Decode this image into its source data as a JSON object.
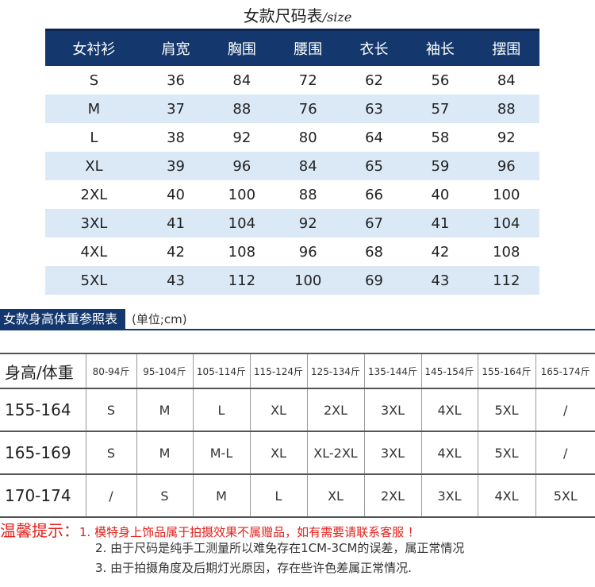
{
  "size_chart": {
    "title": "女款尺码表",
    "title_suffix": "/size",
    "headers": [
      "女衬衫",
      "肩宽",
      "胸围",
      "腰围",
      "衣长",
      "袖长",
      "摆围"
    ],
    "rows": [
      [
        "S",
        "36",
        "84",
        "72",
        "62",
        "56",
        "84"
      ],
      [
        "M",
        "37",
        "88",
        "76",
        "63",
        "57",
        "88"
      ],
      [
        "L",
        "38",
        "92",
        "80",
        "64",
        "58",
        "92"
      ],
      [
        "XL",
        "39",
        "96",
        "84",
        "65",
        "59",
        "96"
      ],
      [
        "2XL",
        "40",
        "100",
        "88",
        "66",
        "40",
        "100"
      ],
      [
        "3XL",
        "41",
        "104",
        "92",
        "67",
        "41",
        "104"
      ],
      [
        "4XL",
        "42",
        "108",
        "96",
        "68",
        "42",
        "108"
      ],
      [
        "5XL",
        "43",
        "112",
        "100",
        "69",
        "43",
        "112"
      ]
    ]
  },
  "height_weight_chart": {
    "title": "女款身高体重参照表",
    "unit": "(单位;cm)",
    "headers": [
      "身高/体重",
      "80-94斤",
      "95-104斤",
      "105-114斤",
      "115-124斤",
      "125-134斤",
      "135-144斤",
      "145-154斤",
      "155-164斤",
      "165-174斤"
    ],
    "rows": [
      [
        "155-164",
        "S",
        "M",
        "L",
        "XL",
        "2XL",
        "3XL",
        "4XL",
        "5XL",
        "/"
      ],
      [
        "165-169",
        "S",
        "M",
        "M-L",
        "XL",
        "XL-2XL",
        "3XL",
        "4XL",
        "5XL",
        "/"
      ],
      [
        "170-174",
        "/",
        "S",
        "M",
        "L",
        "XL",
        "2XL",
        "3XL",
        "4XL",
        "5XL"
      ]
    ]
  },
  "tips": {
    "heading": "温馨提示：",
    "items": [
      "1. 模特身上饰品属于拍摄效果不属赠品，如有需要请联系客服 ！",
      "2. 由于尺码是纯手工测量所以难免存在1CM-3CM的误差，属正常情况",
      "3. 由于拍摄角度及后期灯光原因，存在些许色差属正常情况."
    ]
  },
  "colors": {
    "header_bg": "#14386d",
    "alt_row_bg": "#dbe9f7",
    "tip_red": "#e5201c"
  }
}
